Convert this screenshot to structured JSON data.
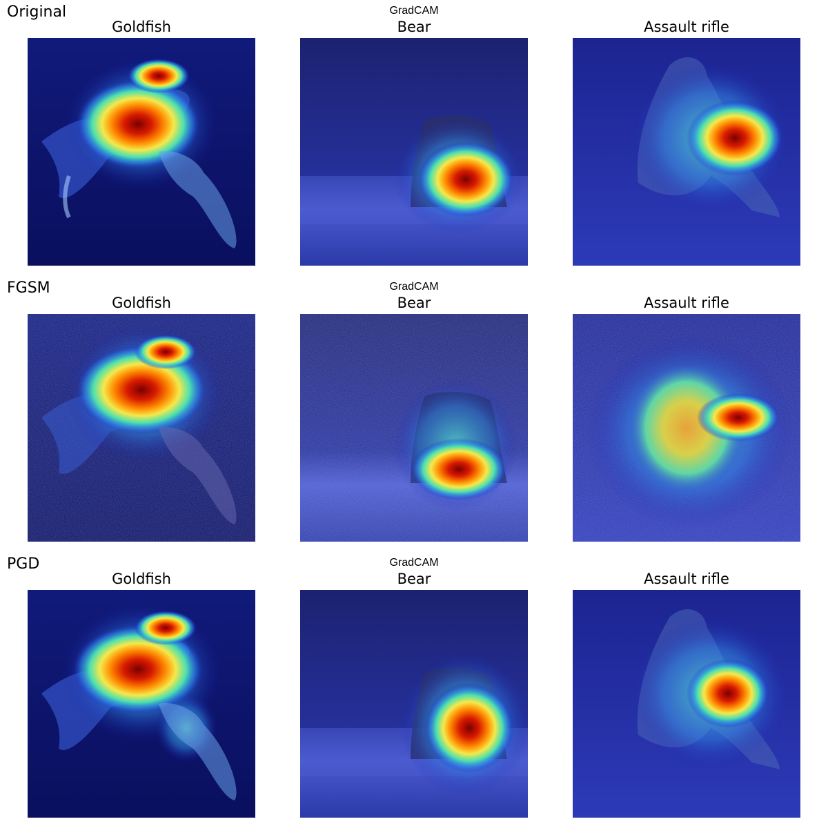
{
  "rows": [
    {
      "label": "Original",
      "suptitle": "GradCAM",
      "panels": [
        {
          "title": "Goldfish",
          "image": "goldfish-gradcam-heatmap"
        },
        {
          "title": "Bear",
          "image": "bear-gradcam-heatmap"
        },
        {
          "title": "Assault rifle",
          "image": "soldier-rifle-gradcam-heatmap"
        }
      ]
    },
    {
      "label": "FGSM",
      "suptitle": "GradCAM",
      "panels": [
        {
          "title": "Goldfish",
          "image": "goldfish-gradcam-heatmap-fgsm"
        },
        {
          "title": "Bear",
          "image": "bear-gradcam-heatmap-fgsm"
        },
        {
          "title": "Assault rifle",
          "image": "soldier-rifle-gradcam-heatmap-fgsm"
        }
      ]
    },
    {
      "label": "PGD",
      "suptitle": "GradCAM",
      "panels": [
        {
          "title": "Goldfish",
          "image": "goldfish-gradcam-heatmap-pgd"
        },
        {
          "title": "Bear",
          "image": "bear-gradcam-heatmap-pgd"
        },
        {
          "title": "Assault rifle",
          "image": "soldier-rifle-gradcam-heatmap-pgd"
        }
      ]
    }
  ]
}
